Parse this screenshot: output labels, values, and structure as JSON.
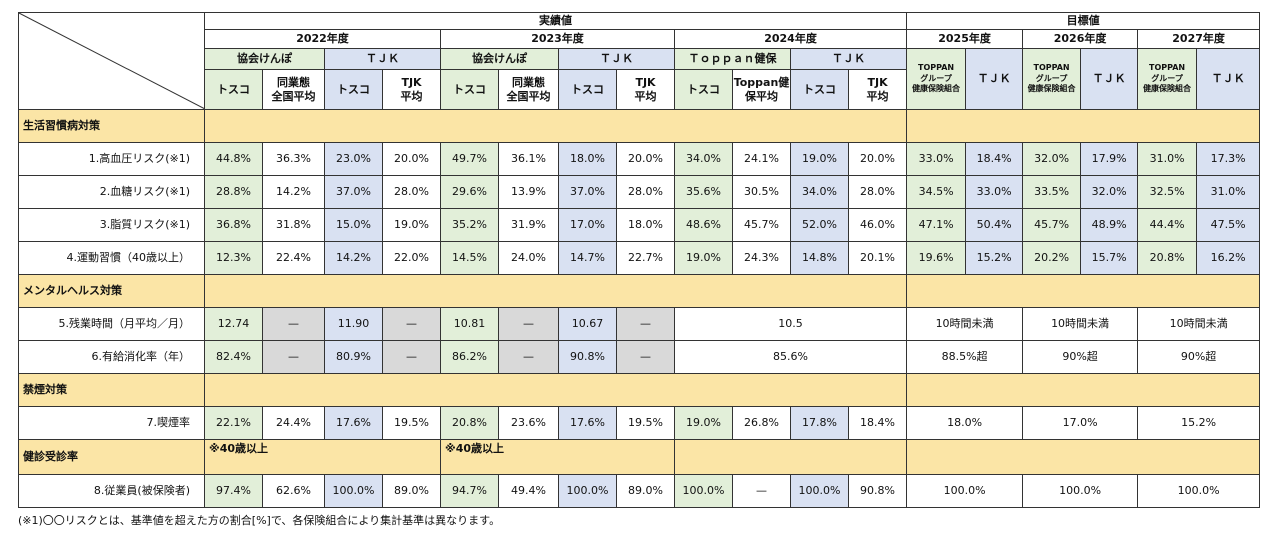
{
  "header": {
    "actual": "実績値",
    "target": "目標値",
    "years": [
      "2022年度",
      "2023年度",
      "2024年度",
      "2025年度",
      "2026年度",
      "2027年度"
    ],
    "kyokai": "協会けんぽ",
    "tjk": "ＴＪＫ",
    "toppan_kenpo": "Ｔｏｐｐａｎ健保",
    "toppan_group_1": "TOPPAN",
    "toppan_group_2": "グループ",
    "toppan_group_3": "健康保険組合",
    "tosco": "トスコ",
    "doug_1": "同業態",
    "doug_2": "全国平均",
    "tjk_avg_1": "TJK",
    "tjk_avg_2": "平均",
    "toppan_avg_1": "Toppan健",
    "toppan_avg_2": "保平均"
  },
  "sections": {
    "lifestyle": "生活習慣病対策",
    "mental": "メンタルヘルス対策",
    "smoking": "禁煙対策",
    "checkup": "健診受診率"
  },
  "notes": {
    "age40_2022": "※40歳以上",
    "age40_2023": "※40歳以上"
  },
  "rows": [
    {
      "label": "1.高血圧リスク(※1)",
      "v": [
        "44.8%",
        "36.3%",
        "23.0%",
        "20.0%",
        "49.7%",
        "36.1%",
        "18.0%",
        "20.0%",
        "34.0%",
        "24.1%",
        "19.0%",
        "20.0%",
        "33.0%",
        "18.4%",
        "32.0%",
        "17.9%",
        "31.0%",
        "17.3%"
      ]
    },
    {
      "label": "2.血糖リスク(※1)",
      "v": [
        "28.8%",
        "14.2%",
        "37.0%",
        "28.0%",
        "29.6%",
        "13.9%",
        "37.0%",
        "28.0%",
        "35.6%",
        "30.5%",
        "34.0%",
        "28.0%",
        "34.5%",
        "33.0%",
        "33.5%",
        "32.0%",
        "32.5%",
        "31.0%"
      ]
    },
    {
      "label": "3.脂質リスク(※1)",
      "v": [
        "36.8%",
        "31.8%",
        "15.0%",
        "19.0%",
        "35.2%",
        "31.9%",
        "17.0%",
        "18.0%",
        "48.6%",
        "45.7%",
        "52.0%",
        "46.0%",
        "47.1%",
        "50.4%",
        "45.7%",
        "48.9%",
        "44.4%",
        "47.5%"
      ]
    },
    {
      "label": "4.運動習慣（40歳以上）",
      "v": [
        "12.3%",
        "22.4%",
        "14.2%",
        "22.0%",
        "14.5%",
        "24.0%",
        "14.7%",
        "22.7%",
        "19.0%",
        "24.3%",
        "14.8%",
        "20.1%",
        "19.6%",
        "15.2%",
        "20.2%",
        "15.7%",
        "20.8%",
        "16.2%"
      ]
    },
    {
      "label": "5.残業時間（月平均／月）",
      "v": [
        "12.74",
        "—",
        "11.90",
        "—",
        "10.81",
        "—",
        "10.67",
        "—",
        "10.5",
        "10時間未満",
        "10時間未満",
        "10時間未満"
      ]
    },
    {
      "label": "6.有給消化率（年）",
      "v": [
        "82.4%",
        "—",
        "80.9%",
        "—",
        "86.2%",
        "—",
        "90.8%",
        "—",
        "85.6%",
        "88.5%超",
        "90%超",
        "90%超"
      ]
    },
    {
      "label": "7.喫煙率",
      "v": [
        "22.1%",
        "24.4%",
        "17.6%",
        "19.5%",
        "20.8%",
        "23.6%",
        "17.6%",
        "19.5%",
        "19.0%",
        "26.8%",
        "17.8%",
        "18.4%",
        "18.0%",
        "17.0%",
        "15.2%"
      ]
    },
    {
      "label": "8.従業員(被保険者)",
      "v": [
        "97.4%",
        "62.6%",
        "100.0%",
        "89.0%",
        "94.7%",
        "49.4%",
        "100.0%",
        "89.0%",
        "100.0%",
        "—",
        "100.0%",
        "90.8%",
        "100.0%",
        "100.0%",
        "100.0%"
      ]
    }
  ],
  "footnote": "(※1)〇〇リスクとは、基準値を超えた方の割合[%]で、各保険組合により集計基準は異なります。"
}
